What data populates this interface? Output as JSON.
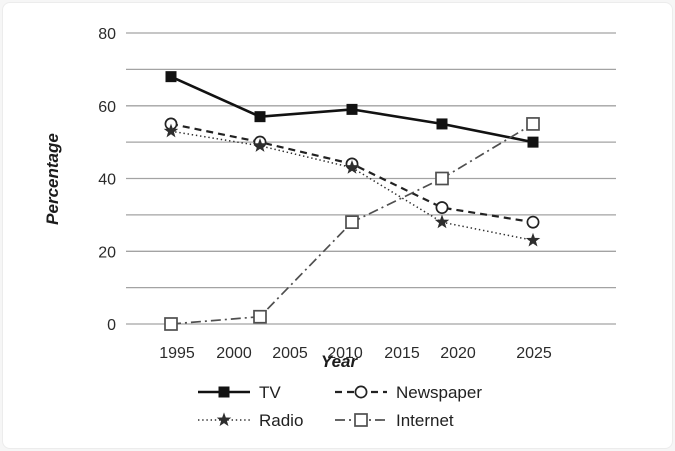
{
  "card": {
    "background": "#ffffff",
    "border_color": "#ececec"
  },
  "chart_data": {
    "type": "line",
    "title": "",
    "xlabel": "Year",
    "ylabel": "Percentage",
    "x": [
      1995,
      2002,
      2010,
      2019,
      2025
    ],
    "x_axis": {
      "ticks": [
        "1995",
        "2000",
        "2005",
        "2010",
        "2015",
        "2020",
        "2025"
      ]
    },
    "y_axis": {
      "ticks": [
        "0",
        "20",
        "40",
        "60",
        "80"
      ],
      "tick_values": [
        0,
        20,
        40,
        60,
        80
      ],
      "gridline_step": 10
    },
    "ylim": [
      0,
      80
    ],
    "grid": "horizontal gridlines every 10, full plot width",
    "legend_position": "bottom, two columns",
    "colors": {
      "grid": "#a3a3a3",
      "text": "#2b2b2b"
    },
    "series": [
      {
        "name": "TV",
        "line": "solid",
        "marker": "filled-square",
        "color": "#121212",
        "values": [
          68,
          57,
          59,
          55,
          50
        ]
      },
      {
        "name": "Newspaper",
        "line": "dashed",
        "marker": "open-circle",
        "color": "#222222",
        "values": [
          55,
          50,
          44,
          32,
          28
        ]
      },
      {
        "name": "Radio",
        "line": "dotted",
        "marker": "filled-star",
        "color": "#2e2e2e",
        "values": [
          53,
          49,
          43,
          28,
          23
        ]
      },
      {
        "name": "Internet",
        "line": "dashdot",
        "marker": "open-square",
        "color": "#4f4f4f",
        "values": [
          0,
          2,
          28,
          40,
          55
        ]
      }
    ]
  }
}
